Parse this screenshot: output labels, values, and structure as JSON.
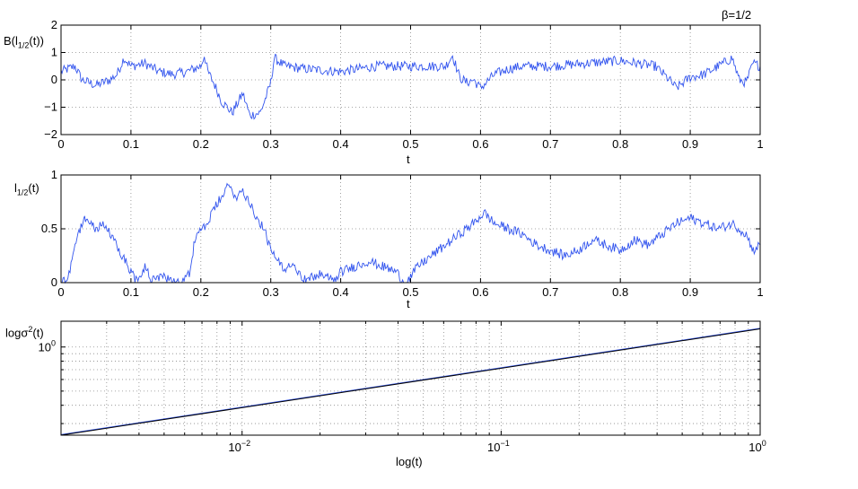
{
  "figure": {
    "beta_label": "β=1/2"
  },
  "chart_data": [
    {
      "type": "line",
      "ylabel": {
        "main": "B(l",
        "sub": "1/2",
        "tail": "(t))"
      },
      "xlabel": "t",
      "xlim": [
        0,
        1
      ],
      "ylim": [
        -2,
        2
      ],
      "x_ticks": [
        "0",
        "0.1",
        "0.2",
        "0.3",
        "0.4",
        "0.5",
        "0.6",
        "0.7",
        "0.8",
        "0.9",
        "1"
      ],
      "y_ticks": [
        "2",
        "1",
        "0",
        "−1",
        "−2"
      ],
      "grid": true,
      "line_color": "#3355ee",
      "keypoints": [
        [
          0,
          0.3
        ],
        [
          0.02,
          0.5
        ],
        [
          0.03,
          0.0
        ],
        [
          0.05,
          -0.2
        ],
        [
          0.07,
          0.0
        ],
        [
          0.08,
          0.2
        ],
        [
          0.09,
          0.8
        ],
        [
          0.1,
          0.5
        ],
        [
          0.12,
          0.6
        ],
        [
          0.14,
          0.3
        ],
        [
          0.16,
          0.2
        ],
        [
          0.18,
          0.3
        ],
        [
          0.2,
          0.5
        ],
        [
          0.205,
          0.9
        ],
        [
          0.21,
          0.3
        ],
        [
          0.22,
          -0.2
        ],
        [
          0.23,
          -0.8
        ],
        [
          0.245,
          -1.2
        ],
        [
          0.26,
          -0.5
        ],
        [
          0.27,
          -1.3
        ],
        [
          0.285,
          -1.2
        ],
        [
          0.295,
          -0.5
        ],
        [
          0.3,
          -0.1
        ],
        [
          0.305,
          0.8
        ],
        [
          0.32,
          0.5
        ],
        [
          0.35,
          0.4
        ],
        [
          0.4,
          0.3
        ],
        [
          0.45,
          0.5
        ],
        [
          0.5,
          0.5
        ],
        [
          0.55,
          0.5
        ],
        [
          0.56,
          0.9
        ],
        [
          0.57,
          0.1
        ],
        [
          0.58,
          -0.1
        ],
        [
          0.59,
          0.0
        ],
        [
          0.6,
          -0.3
        ],
        [
          0.62,
          0.2
        ],
        [
          0.64,
          0.4
        ],
        [
          0.66,
          0.5
        ],
        [
          0.7,
          0.5
        ],
        [
          0.75,
          0.6
        ],
        [
          0.8,
          0.7
        ],
        [
          0.85,
          0.5
        ],
        [
          0.87,
          0.0
        ],
        [
          0.88,
          -0.3
        ],
        [
          0.9,
          0.1
        ],
        [
          0.92,
          0.2
        ],
        [
          0.94,
          0.5
        ],
        [
          0.96,
          0.8
        ],
        [
          0.97,
          0.0
        ],
        [
          0.98,
          -0.1
        ],
        [
          0.99,
          0.6
        ],
        [
          1.0,
          0.5
        ]
      ]
    },
    {
      "type": "line",
      "ylabel": {
        "main": "l",
        "sub": "1/2",
        "tail": "(t)"
      },
      "xlabel": "t",
      "xlim": [
        0,
        1
      ],
      "ylim": [
        0,
        1
      ],
      "x_ticks": [
        "0",
        "0.1",
        "0.2",
        "0.3",
        "0.4",
        "0.5",
        "0.6",
        "0.7",
        "0.8",
        "0.9",
        "1"
      ],
      "y_ticks": [
        "1",
        "0.5",
        "0"
      ],
      "grid": true,
      "line_color": "#3355ee",
      "keypoints": [
        [
          0,
          0.0
        ],
        [
          0.01,
          0.05
        ],
        [
          0.02,
          0.35
        ],
        [
          0.03,
          0.55
        ],
        [
          0.035,
          0.6
        ],
        [
          0.05,
          0.5
        ],
        [
          0.06,
          0.55
        ],
        [
          0.07,
          0.45
        ],
        [
          0.08,
          0.35
        ],
        [
          0.1,
          0.1
        ],
        [
          0.11,
          0.0
        ],
        [
          0.12,
          0.15
        ],
        [
          0.13,
          0.02
        ],
        [
          0.15,
          0.05
        ],
        [
          0.17,
          0.0
        ],
        [
          0.185,
          0.1
        ],
        [
          0.19,
          0.35
        ],
        [
          0.2,
          0.5
        ],
        [
          0.21,
          0.55
        ],
        [
          0.22,
          0.7
        ],
        [
          0.235,
          0.85
        ],
        [
          0.24,
          0.9
        ],
        [
          0.25,
          0.8
        ],
        [
          0.26,
          0.85
        ],
        [
          0.27,
          0.75
        ],
        [
          0.28,
          0.6
        ],
        [
          0.29,
          0.5
        ],
        [
          0.3,
          0.3
        ],
        [
          0.31,
          0.2
        ],
        [
          0.32,
          0.1
        ],
        [
          0.33,
          0.2
        ],
        [
          0.34,
          0.1
        ],
        [
          0.35,
          0.02
        ],
        [
          0.37,
          0.08
        ],
        [
          0.39,
          0.02
        ],
        [
          0.4,
          0.1
        ],
        [
          0.42,
          0.15
        ],
        [
          0.44,
          0.2
        ],
        [
          0.46,
          0.15
        ],
        [
          0.48,
          0.1
        ],
        [
          0.49,
          0.0
        ],
        [
          0.5,
          0.05
        ],
        [
          0.51,
          0.15
        ],
        [
          0.53,
          0.25
        ],
        [
          0.55,
          0.35
        ],
        [
          0.57,
          0.45
        ],
        [
          0.59,
          0.55
        ],
        [
          0.605,
          0.65
        ],
        [
          0.62,
          0.55
        ],
        [
          0.64,
          0.5
        ],
        [
          0.66,
          0.45
        ],
        [
          0.68,
          0.35
        ],
        [
          0.7,
          0.3
        ],
        [
          0.72,
          0.25
        ],
        [
          0.74,
          0.3
        ],
        [
          0.76,
          0.4
        ],
        [
          0.78,
          0.35
        ],
        [
          0.8,
          0.3
        ],
        [
          0.82,
          0.4
        ],
        [
          0.84,
          0.35
        ],
        [
          0.86,
          0.45
        ],
        [
          0.88,
          0.55
        ],
        [
          0.9,
          0.6
        ],
        [
          0.92,
          0.55
        ],
        [
          0.94,
          0.5
        ],
        [
          0.96,
          0.55
        ],
        [
          0.98,
          0.45
        ],
        [
          0.99,
          0.3
        ],
        [
          1.0,
          0.35
        ]
      ]
    },
    {
      "type": "line",
      "scale": "log-log",
      "ylabel": {
        "main": "log",
        "sym": "σ",
        "sup": "2",
        "tail": "(t)"
      },
      "xlabel": "log(t)",
      "xlim": [
        0.002,
        1
      ],
      "ylim": [
        0.25,
        1.5
      ],
      "x_ticks": [
        {
          "base": "10",
          "exp": "−2"
        },
        {
          "base": "10",
          "exp": "−1"
        },
        {
          "base": "10",
          "exp": "0"
        }
      ],
      "y_ticks": [
        {
          "base": "10",
          "exp": "0"
        }
      ],
      "grid": true,
      "series": [
        {
          "color": "#3355ee",
          "points": [
            [
              0.002,
              0.25
            ],
            [
              1,
              1.33
            ]
          ]
        },
        {
          "color": "#000000",
          "points": [
            [
              0.002,
              0.25
            ],
            [
              1,
              1.33
            ]
          ]
        }
      ]
    }
  ]
}
